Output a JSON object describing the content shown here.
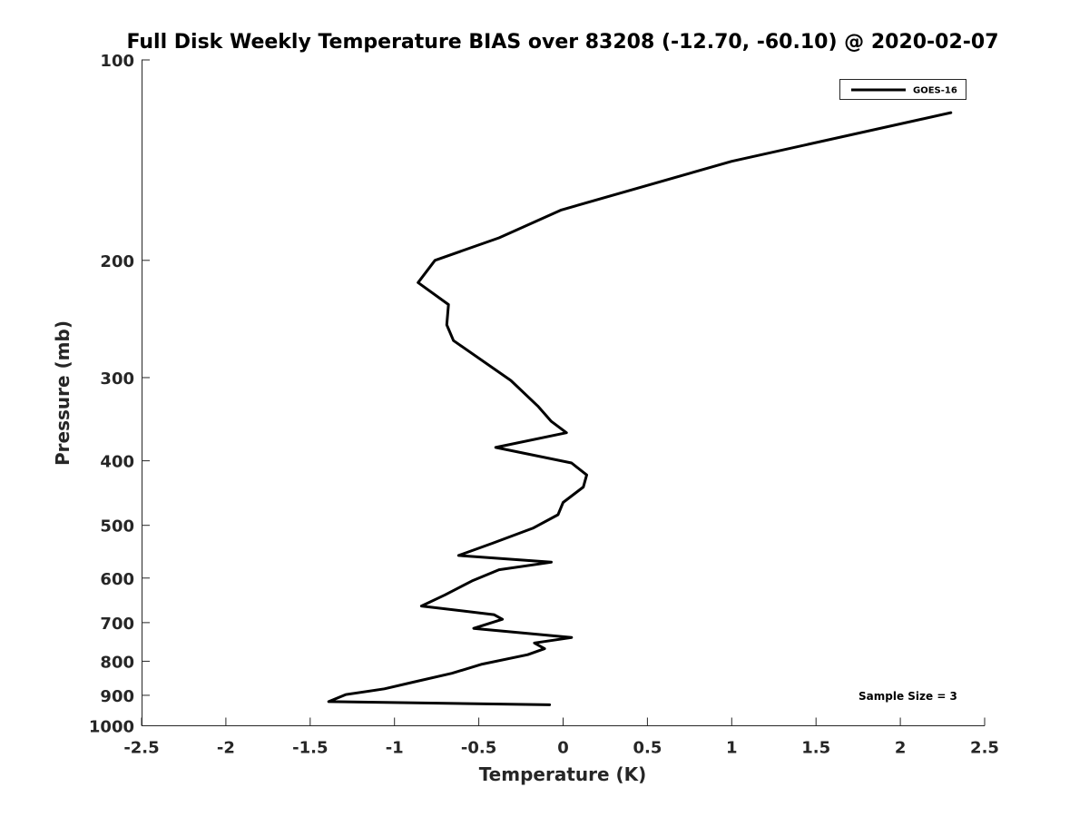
{
  "chart_data": {
    "type": "line",
    "title": "Full Disk Weekly Temperature BIAS over 83208 (-12.70, -60.10) @ 2020-02-07",
    "xlabel": "Temperature (K)",
    "ylabel": "Pressure (mb)",
    "xlim": [
      -2.5,
      2.5
    ],
    "ylim": [
      1000,
      100
    ],
    "y_scale": "log",
    "y_reversed": true,
    "x_ticks": [
      -2.5,
      -2,
      -1.5,
      -1,
      -0.5,
      0,
      0.5,
      1,
      1.5,
      2,
      2.5
    ],
    "x_tick_labels": [
      "-2.5",
      "-2",
      "-1.5",
      "-1",
      "-0.5",
      "0",
      "0.5",
      "1",
      "1.5",
      "2",
      "2.5"
    ],
    "y_ticks": [
      100,
      200,
      300,
      400,
      500,
      600,
      700,
      800,
      900,
      1000
    ],
    "y_tick_labels": [
      "100",
      "200",
      "300",
      "400",
      "500",
      "600",
      "700",
      "800",
      "900",
      "1000"
    ],
    "grid": false,
    "legend_position": "top-right",
    "annotation": "Sample Size = 3",
    "line_color": "#000000",
    "series": [
      {
        "name": "GOES-16",
        "x": [
          2.3,
          1.0,
          -0.01,
          -0.38,
          -0.76,
          -0.86,
          -0.68,
          -0.69,
          -0.65,
          -0.31,
          -0.15,
          -0.07,
          0.02,
          -0.4,
          0.05,
          0.14,
          0.12,
          0.0,
          -0.03,
          -0.18,
          -0.42,
          -0.62,
          -0.07,
          -0.38,
          -0.54,
          -0.7,
          -0.84,
          -0.41,
          -0.36,
          -0.53,
          0.05,
          -0.17,
          -0.11,
          -0.21,
          -0.48,
          -0.66,
          -0.89,
          -1.06,
          -1.29,
          -1.39,
          -0.08
        ],
        "y": [
          120,
          142,
          168,
          185,
          200,
          216,
          233,
          250,
          264,
          303,
          331,
          349,
          363,
          382,
          403,
          420,
          438,
          462,
          482,
          505,
          532,
          555,
          568,
          583,
          606,
          636,
          661,
          681,
          692,
          714,
          737,
          751,
          766,
          782,
          808,
          834,
          860,
          880,
          898,
          920,
          930
        ]
      }
    ]
  }
}
